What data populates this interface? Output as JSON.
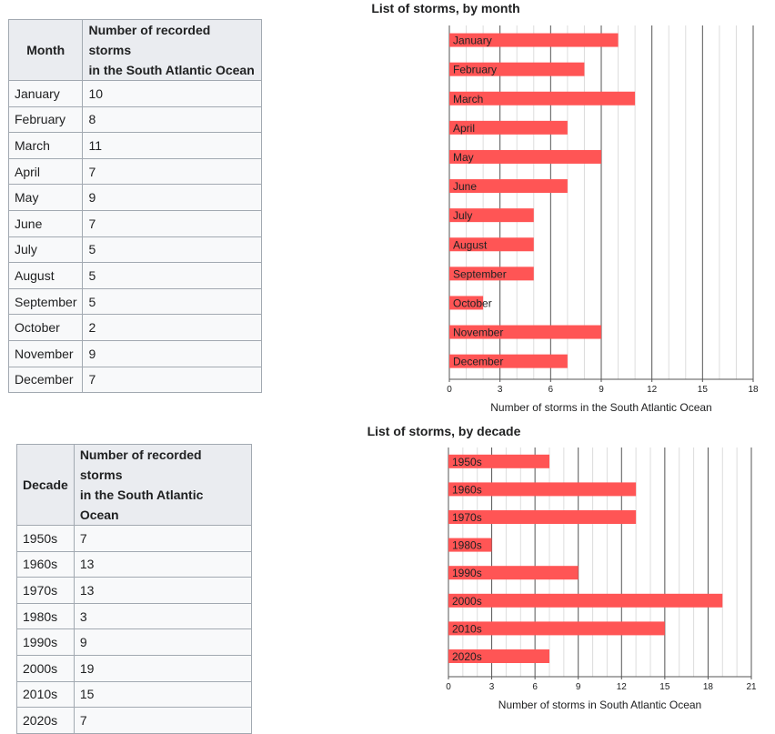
{
  "tables": [
    {
      "key_header": "Month",
      "value_header_line1": "Number of recorded storms",
      "value_header_line2": "in the South Atlantic Ocean",
      "rows": [
        {
          "label": "January",
          "value": "10"
        },
        {
          "label": "February",
          "value": "8"
        },
        {
          "label": "March",
          "value": "11"
        },
        {
          "label": "April",
          "value": "7"
        },
        {
          "label": "May",
          "value": "9"
        },
        {
          "label": "June",
          "value": "7"
        },
        {
          "label": "July",
          "value": "5"
        },
        {
          "label": "August",
          "value": "5"
        },
        {
          "label": "September",
          "value": "5"
        },
        {
          "label": "October",
          "value": "2"
        },
        {
          "label": "November",
          "value": "9"
        },
        {
          "label": "December",
          "value": "7"
        }
      ]
    },
    {
      "key_header": "Decade",
      "value_header_line1": "Number of recorded storms",
      "value_header_line2": "in the South Atlantic Ocean",
      "rows": [
        {
          "label": "1950s",
          "value": "7"
        },
        {
          "label": "1960s",
          "value": "13"
        },
        {
          "label": "1970s",
          "value": "13"
        },
        {
          "label": "1980s",
          "value": "3"
        },
        {
          "label": "1990s",
          "value": "9"
        },
        {
          "label": "2000s",
          "value": "19"
        },
        {
          "label": "2010s",
          "value": "15"
        },
        {
          "label": "2020s",
          "value": "7"
        }
      ]
    }
  ],
  "colors": {
    "bar": "#ff5555",
    "major_grid": "#555555",
    "minor_grid": "#dddddd"
  },
  "chart_data": [
    {
      "type": "bar",
      "orientation": "horizontal",
      "title": "List of storms, by month",
      "xlabel": "Number of storms in the South Atlantic Ocean",
      "categories": [
        "January",
        "February",
        "March",
        "April",
        "May",
        "June",
        "July",
        "August",
        "September",
        "October",
        "November",
        "December"
      ],
      "values": [
        10,
        8,
        11,
        7,
        9,
        7,
        5,
        5,
        5,
        2,
        9,
        7
      ],
      "xlim": [
        0,
        18
      ],
      "ticks": [
        0,
        3,
        6,
        9,
        12,
        15,
        18
      ],
      "grid": true
    },
    {
      "type": "bar",
      "orientation": "horizontal",
      "title": "List of storms, by decade",
      "xlabel": "Number of storms in South Atlantic Ocean",
      "categories": [
        "1950s",
        "1960s",
        "1970s",
        "1980s",
        "1990s",
        "2000s",
        "2010s",
        "2020s"
      ],
      "values": [
        7,
        13,
        13,
        3,
        9,
        19,
        15,
        7
      ],
      "xlim": [
        0,
        21
      ],
      "ticks": [
        0,
        3,
        6,
        9,
        12,
        15,
        18,
        21
      ],
      "grid": true
    }
  ]
}
